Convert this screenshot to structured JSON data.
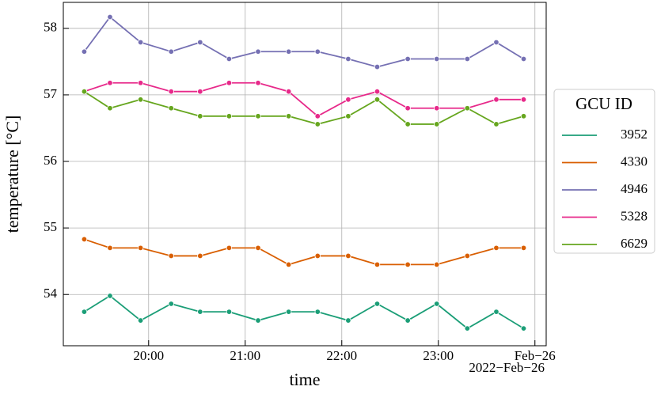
{
  "chart_data": {
    "type": "line",
    "x_label": "time",
    "y_label": "temperature [°C]",
    "x_offset": "2022−Feb−26",
    "x": [
      "2022-02-25T19:20",
      "2022-02-25T19:36",
      "2022-02-25T19:55",
      "2022-02-25T20:14",
      "2022-02-25T20:32",
      "2022-02-25T20:50",
      "2022-02-25T21:08",
      "2022-02-25T21:27",
      "2022-02-25T21:45",
      "2022-02-25T22:04",
      "2022-02-25T22:22",
      "2022-02-25T22:41",
      "2022-02-25T22:59",
      "2022-02-25T23:18",
      "2022-02-25T23:36",
      "2022-02-25T23:53"
    ],
    "xlim": [
      "2022-02-25T19:07",
      "2022-02-26T00:07"
    ],
    "xticks": [
      {
        "value": "2022-02-25T20:00",
        "label": "20:00"
      },
      {
        "value": "2022-02-25T21:00",
        "label": "21:00"
      },
      {
        "value": "2022-02-25T22:00",
        "label": "22:00"
      },
      {
        "value": "2022-02-25T23:00",
        "label": "23:00"
      },
      {
        "value": "2022-02-26T00:00",
        "label": "Feb−26"
      }
    ],
    "ylim": [
      53.23,
      58.39
    ],
    "yticks": [
      54,
      55,
      56,
      57,
      58
    ],
    "grid": true,
    "legend_title": "GCU ID",
    "legend_position": "outside right",
    "series": [
      {
        "name": "3952",
        "color": "#1b9e77",
        "values": [
          53.74,
          53.98,
          53.61,
          53.86,
          53.74,
          53.74,
          53.61,
          53.74,
          53.74,
          53.61,
          53.86,
          53.61,
          53.86,
          53.49,
          53.74,
          53.49
        ]
      },
      {
        "name": "4330",
        "color": "#d95f02",
        "values": [
          54.83,
          54.7,
          54.7,
          54.58,
          54.58,
          54.7,
          54.7,
          54.45,
          54.58,
          54.58,
          54.45,
          54.45,
          54.45,
          54.58,
          54.7,
          54.7
        ]
      },
      {
        "name": "4946",
        "color": "#7570b3",
        "values": [
          57.65,
          58.17,
          57.79,
          57.65,
          57.79,
          57.54,
          57.65,
          57.65,
          57.65,
          57.54,
          57.42,
          57.54,
          57.54,
          57.54,
          57.79,
          57.54
        ]
      },
      {
        "name": "5328",
        "color": "#e7298a",
        "values": [
          57.05,
          57.18,
          57.18,
          57.05,
          57.05,
          57.18,
          57.18,
          57.05,
          56.68,
          56.93,
          57.05,
          56.8,
          56.8,
          56.8,
          56.93,
          56.93
        ]
      },
      {
        "name": "6629",
        "color": "#66a61e",
        "values": [
          57.05,
          56.8,
          56.93,
          56.8,
          56.68,
          56.68,
          56.68,
          56.68,
          56.56,
          56.68,
          56.93,
          56.56,
          56.56,
          56.8,
          56.56,
          56.68
        ]
      }
    ]
  }
}
